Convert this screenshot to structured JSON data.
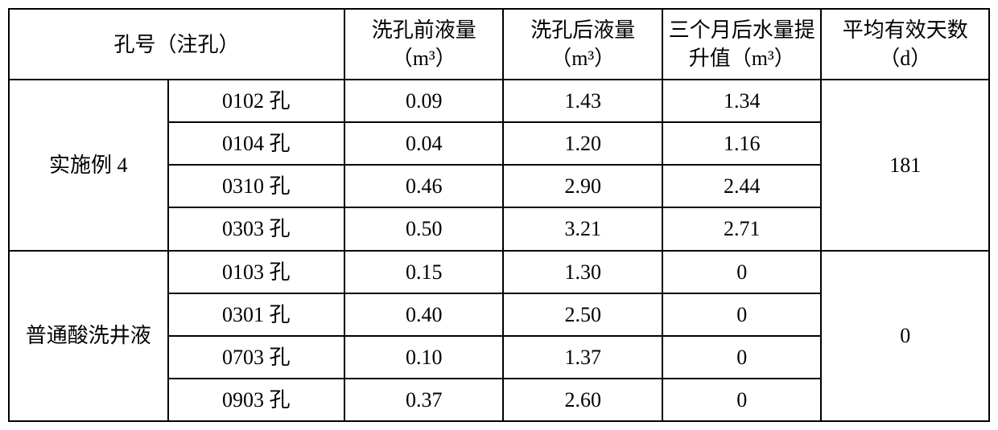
{
  "table": {
    "border_color": "#000000",
    "background_color": "#ffffff",
    "font_family": "SimSun",
    "cell_fontsize": 26,
    "headers": {
      "hole_no": "孔号（注孔）",
      "before": "洗孔前液量（m³）",
      "after": "洗孔后液量（m³）",
      "delta3m": "三个月后水量提升值（m³）",
      "avg_days": "平均有效天数",
      "avg_days_unit": "（d）"
    },
    "groups": [
      {
        "label": "实施例 4",
        "avg_days": "181",
        "rows": [
          {
            "hole": "0102 孔",
            "before": "0.09",
            "after": "1.43",
            "delta": "1.34"
          },
          {
            "hole": "0104 孔",
            "before": "0.04",
            "after": "1.20",
            "delta": "1.16"
          },
          {
            "hole": "0310 孔",
            "before": "0.46",
            "after": "2.90",
            "delta": "2.44"
          },
          {
            "hole": "0303 孔",
            "before": "0.50",
            "after": "3.21",
            "delta": "2.71"
          }
        ]
      },
      {
        "label": "普通酸洗井液",
        "avg_days": "0",
        "rows": [
          {
            "hole": "0103 孔",
            "before": "0.15",
            "after": "1.30",
            "delta": "0"
          },
          {
            "hole": "0301 孔",
            "before": "0.40",
            "after": "2.50",
            "delta": "0"
          },
          {
            "hole": "0703 孔",
            "before": "0.10",
            "after": "1.37",
            "delta": "0"
          },
          {
            "hole": "0903 孔",
            "before": "0.37",
            "after": "2.60",
            "delta": "0"
          }
        ]
      }
    ]
  }
}
